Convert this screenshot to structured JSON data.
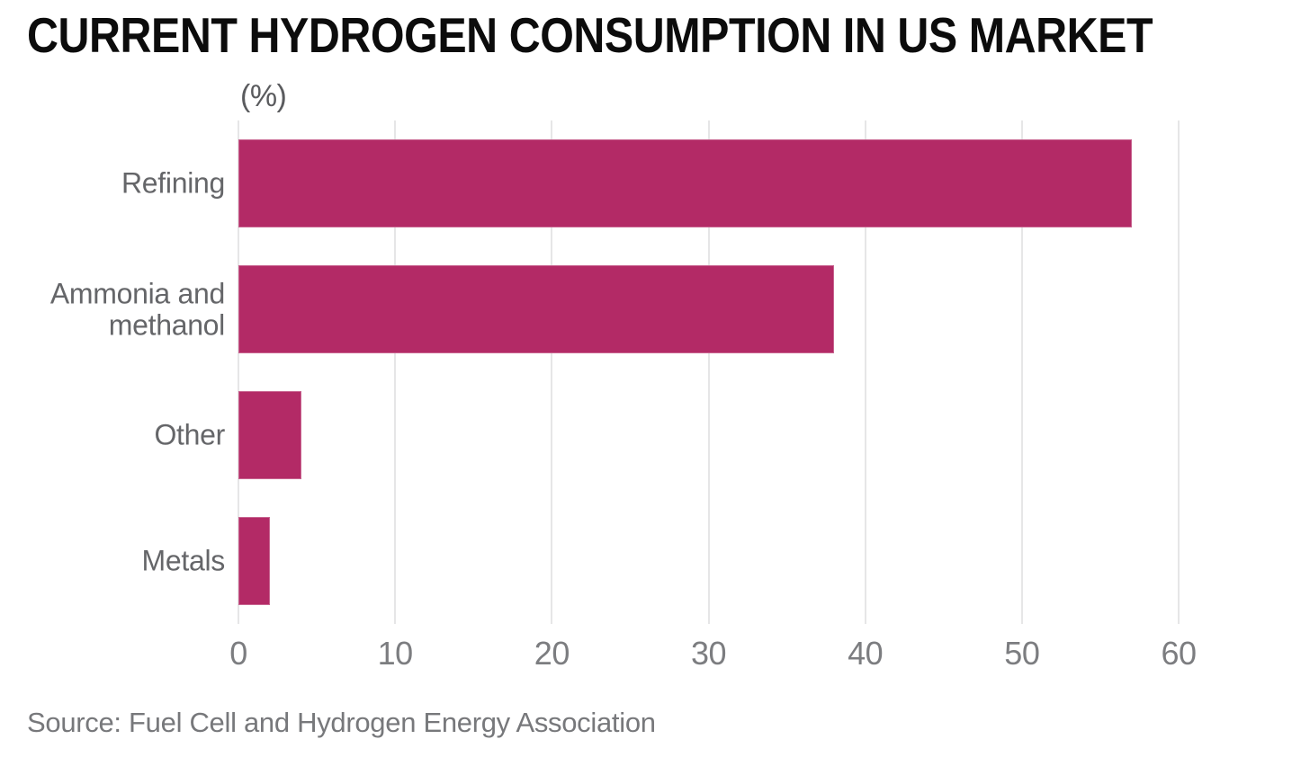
{
  "chart": {
    "title": "CURRENT HYDROGEN CONSUMPTION IN US MARKET",
    "unit_label": "(%)",
    "source": "Source: Fuel Cell and Hydrogen Energy Association"
  },
  "chart_data": {
    "type": "bar",
    "orientation": "horizontal",
    "title": "CURRENT HYDROGEN CONSUMPTION IN US MARKET",
    "xlabel": "(%)",
    "ylabel": "",
    "categories": [
      "Refining",
      "Ammonia and methanol",
      "Other",
      "Metals"
    ],
    "values": [
      57,
      38,
      4,
      2
    ],
    "unit": "%",
    "xlim": [
      0,
      60
    ],
    "xticks": [
      0,
      10,
      20,
      30,
      40,
      50,
      60
    ],
    "grid": "vertical-gridlines-on",
    "legend": "none",
    "source": "Source: Fuel Cell and Hydrogen Energy Association"
  },
  "colors": {
    "background": "#ffffff",
    "bar": "#b32a66",
    "grid": "#e6e6e7",
    "title": "#0c0c0c",
    "category_label": "#656669",
    "tick_label": "#7c7d80",
    "unit_label": "#5a5b5e",
    "source": "#77787b"
  }
}
